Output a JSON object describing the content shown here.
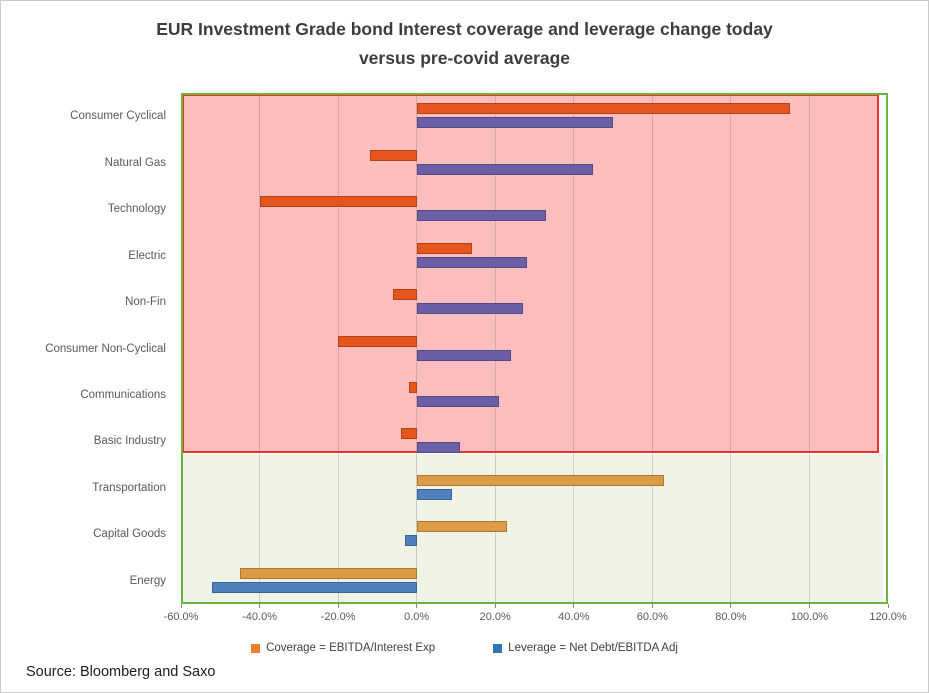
{
  "page": {
    "title_line1": "EUR Investment Grade bond Interest coverage and leverage change today",
    "title_line2": "versus pre-covid average",
    "source": "Source: Bloomberg and Saxo"
  },
  "legend": {
    "items": [
      {
        "label": "Coverage = EBITDA/Interest Exp",
        "color": "#ed7d31"
      },
      {
        "label": "Leverage = Net Debt/EBITDA Adj",
        "color": "#2e75b6"
      }
    ]
  },
  "chart_data": {
    "type": "bar",
    "orientation": "horizontal",
    "unit": "percent",
    "title": "EUR Investment Grade bond Interest coverage and leverage change today versus pre-covid average",
    "categories": [
      "Consumer Cyclical",
      "Natural Gas",
      "Technology",
      "Electric",
      "Non-Fin",
      "Consumer Non-Cyclical",
      "Communications",
      "Basic Industry",
      "Transportation",
      "Capital Goods",
      "Energy"
    ],
    "series": [
      {
        "name": "Coverage = EBITDA/Interest Exp",
        "values": [
          95,
          -12,
          -40,
          14,
          -6,
          -20,
          -2,
          -4,
          63,
          23,
          -45
        ]
      },
      {
        "name": "Leverage = Net Debt/EBITDA Adj",
        "values": [
          50,
          45,
          33,
          28,
          27,
          24,
          21,
          11,
          9,
          -3,
          -52
        ]
      }
    ],
    "xlim": [
      -60,
      120
    ],
    "x_ticks": [
      -60,
      -40,
      -20,
      0,
      20,
      40,
      60,
      80,
      100,
      120
    ],
    "x_tick_labels": [
      "-60.0%",
      "-40.0%",
      "-20.0%",
      "0.0%",
      "20.0%",
      "40.0%",
      "60.0%",
      "80.0%",
      "100.0%",
      "120.0%"
    ],
    "grid": true,
    "legend_position": "bottom",
    "regions": [
      {
        "name": "worse-than-precovid",
        "category_start": 0,
        "category_end": 7,
        "fill": "#fbbdbd",
        "border": "#e8342a"
      },
      {
        "name": "better-than-precovid",
        "category_start": 8,
        "category_end": 10,
        "fill": "#eef3e6",
        "border": "#68b63f"
      }
    ],
    "series_colors_by_region": {
      "coverage": {
        "top": "#e4561e",
        "bottom": "#dd9b45"
      },
      "leverage": {
        "top": "#6b5fa7",
        "bottom": "#4e81bd"
      }
    },
    "plot_border_color": "#68b63f"
  }
}
